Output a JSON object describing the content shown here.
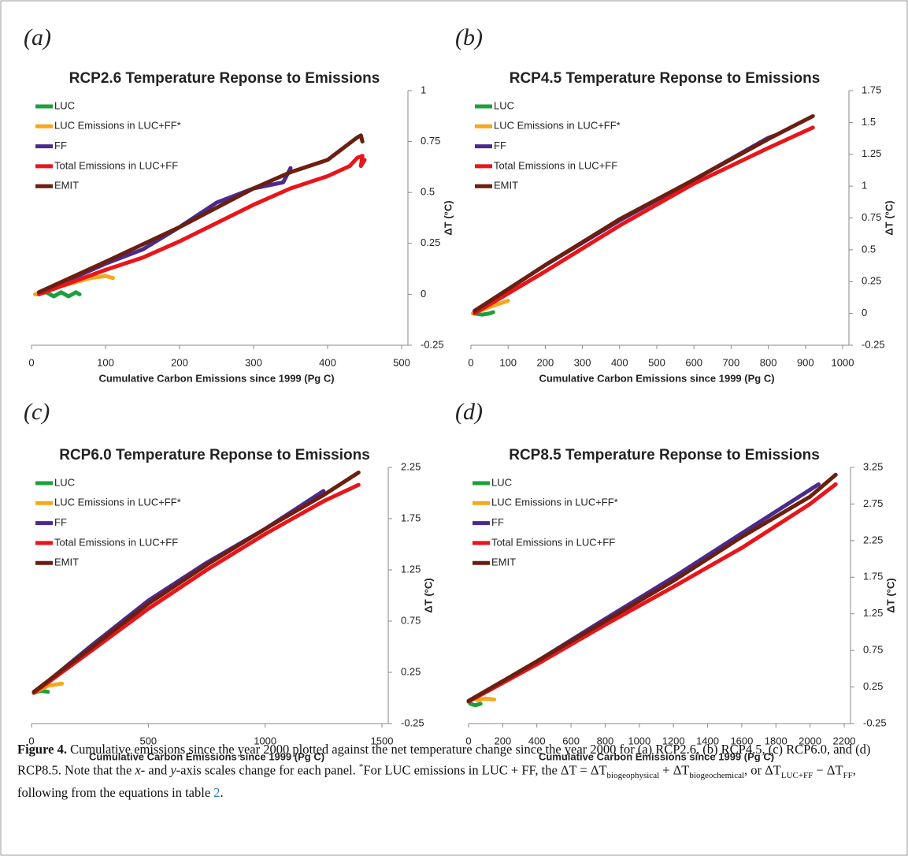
{
  "chart_data": [
    {
      "type": "line",
      "panel_label": "(a)",
      "title": "RCP2.6 Temperature Reponse to Emissions",
      "x_label": "Cumulative Carbon Emissions since 1999 (Pg C)",
      "y_label": "ΔT (°C)",
      "xlim": [
        0,
        500
      ],
      "xticks": [
        0,
        100,
        200,
        300,
        400,
        500
      ],
      "ylim": [
        -0.25,
        1
      ],
      "yticks": [
        1,
        0.75,
        0.5,
        0.25,
        0,
        -0.25
      ],
      "y_axis_side": "right",
      "legend": "upper left",
      "series": [
        {
          "name": "LUC",
          "color": "#1e9e3e",
          "x": [
            5,
            20,
            30,
            40,
            50,
            55,
            60,
            65
          ],
          "values": [
            0,
            0.01,
            -0.01,
            0.01,
            -0.01,
            0,
            0.01,
            0
          ]
        },
        {
          "name": "LUC Emissions in LUC+FF*",
          "color": "#f5a81c",
          "x": [
            5,
            20,
            40,
            60,
            80,
            100,
            110
          ],
          "values": [
            0,
            0.02,
            0.04,
            0.06,
            0.08,
            0.09,
            0.08
          ]
        },
        {
          "name": "FF",
          "color": "#4b2a8f",
          "x": [
            10,
            50,
            100,
            150,
            200,
            250,
            300,
            340,
            350
          ],
          "values": [
            0.01,
            0.07,
            0.15,
            0.22,
            0.33,
            0.45,
            0.52,
            0.55,
            0.62
          ]
        },
        {
          "name": "Total Emissions in LUC+FF",
          "color": "#e8151b",
          "x": [
            10,
            100,
            150,
            200,
            250,
            300,
            350,
            400,
            430,
            440,
            447,
            445,
            450
          ],
          "values": [
            0,
            0.12,
            0.18,
            0.26,
            0.35,
            0.44,
            0.52,
            0.58,
            0.63,
            0.67,
            0.68,
            0.63,
            0.66
          ]
        },
        {
          "name": "EMIT",
          "color": "#6b1f0f",
          "x": [
            10,
            100,
            200,
            300,
            350,
            400,
            440,
            445,
            447
          ],
          "values": [
            0.01,
            0.16,
            0.33,
            0.52,
            0.6,
            0.66,
            0.77,
            0.78,
            0.75
          ]
        }
      ]
    },
    {
      "type": "line",
      "panel_label": "(b)",
      "title": "RCP4.5 Temperature Reponse to Emissions",
      "x_label": "Cumulative Carbon Emissions since 1999 (Pg C)",
      "y_label": "ΔT (°C)",
      "xlim": [
        0,
        1000
      ],
      "xticks": [
        0,
        100,
        200,
        300,
        400,
        500,
        600,
        700,
        800,
        900,
        1000
      ],
      "ylim": [
        -0.25,
        1.75
      ],
      "yticks": [
        1.75,
        1.5,
        1.25,
        1,
        0.75,
        0.5,
        0.25,
        0,
        -0.25
      ],
      "y_axis_side": "right",
      "legend": "upper left",
      "series": [
        {
          "name": "LUC",
          "color": "#1e9e3e",
          "x": [
            10,
            30,
            50,
            60
          ],
          "values": [
            0,
            -0.01,
            0,
            0.01
          ]
        },
        {
          "name": "LUC Emissions in LUC+FF*",
          "color": "#f5a81c",
          "x": [
            5,
            50,
            100
          ],
          "values": [
            0,
            0.05,
            0.1
          ]
        },
        {
          "name": "FF",
          "color": "#4b2a8f",
          "x": [
            10,
            200,
            400,
            600,
            800,
            820
          ],
          "values": [
            0.02,
            0.38,
            0.73,
            1.05,
            1.38,
            1.4
          ]
        },
        {
          "name": "Total Emissions in LUC+FF",
          "color": "#e8151b",
          "x": [
            10,
            200,
            400,
            600,
            800,
            920
          ],
          "values": [
            0,
            0.33,
            0.69,
            1.02,
            1.3,
            1.46
          ]
        },
        {
          "name": "EMIT",
          "color": "#6b1f0f",
          "x": [
            10,
            200,
            400,
            600,
            800,
            920
          ],
          "values": [
            0.02,
            0.38,
            0.74,
            1.05,
            1.37,
            1.55
          ]
        }
      ]
    },
    {
      "type": "line",
      "panel_label": "(c)",
      "title": "RCP6.0 Temperature Reponse to Emissions",
      "x_label": "Cumulative Carbon Emissions since 1999 (Pg C)",
      "y_label": "ΔT (°C)",
      "xlim": [
        0,
        1500
      ],
      "xticks": [
        0,
        500,
        1000,
        1500
      ],
      "ylim": [
        -0.25,
        2.25
      ],
      "yticks": [
        2.25,
        1.75,
        1.25,
        0.75,
        0.25,
        -0.25
      ],
      "y_axis_side": "right",
      "legend": "upper left",
      "series": [
        {
          "name": "LUC",
          "color": "#1e9e3e",
          "x": [
            10,
            40,
            70
          ],
          "values": [
            0.05,
            0.07,
            0.06
          ]
        },
        {
          "name": "LUC Emissions in LUC+FF*",
          "color": "#f5a81c",
          "x": [
            10,
            70,
            130
          ],
          "values": [
            0.05,
            0.12,
            0.14
          ]
        },
        {
          "name": "FF",
          "color": "#4b2a8f",
          "x": [
            10,
            250,
            500,
            750,
            1000,
            1250
          ],
          "values": [
            0.05,
            0.5,
            0.95,
            1.32,
            1.65,
            2.02
          ]
        },
        {
          "name": "Total Emissions in LUC+FF",
          "color": "#e8151b",
          "x": [
            10,
            250,
            500,
            750,
            1000,
            1250,
            1400
          ],
          "values": [
            0.05,
            0.45,
            0.87,
            1.25,
            1.6,
            1.92,
            2.08
          ]
        },
        {
          "name": "EMIT",
          "color": "#6b1f0f",
          "x": [
            10,
            250,
            500,
            750,
            1000,
            1250,
            1400
          ],
          "values": [
            0.06,
            0.48,
            0.92,
            1.3,
            1.65,
            1.98,
            2.2
          ]
        }
      ]
    },
    {
      "type": "line",
      "panel_label": "(d)",
      "title": "RCP8.5 Temperature Reponse to Emissions",
      "x_label": "Cumulative Carbon Emissions since 1999 (Pg C)",
      "y_label": "ΔT (°C)",
      "xlim": [
        0,
        2200
      ],
      "xticks": [
        0,
        200,
        400,
        600,
        800,
        1000,
        1200,
        1400,
        1600,
        1800,
        2000,
        2200
      ],
      "ylim": [
        -0.25,
        3.25
      ],
      "yticks": [
        3.25,
        2.75,
        2.25,
        1.75,
        1.25,
        0.75,
        0.25,
        -0.25
      ],
      "y_axis_side": "right",
      "legend": "upper left",
      "series": [
        {
          "name": "LUC",
          "color": "#1e9e3e",
          "x": [
            10,
            40,
            70
          ],
          "values": [
            0.02,
            0,
            0.02
          ]
        },
        {
          "name": "LUC Emissions in LUC+FF*",
          "color": "#f5a81c",
          "x": [
            50,
            100,
            150
          ],
          "values": [
            0.07,
            0.09,
            0.08
          ]
        },
        {
          "name": "FF",
          "color": "#4b2a8f",
          "x": [
            0,
            400,
            800,
            1200,
            1600,
            2050
          ],
          "values": [
            0.05,
            0.6,
            1.18,
            1.75,
            2.35,
            3.02
          ]
        },
        {
          "name": "Total Emissions in LUC+FF",
          "color": "#e8151b",
          "x": [
            0,
            400,
            800,
            1200,
            1600,
            2000,
            2150
          ],
          "values": [
            0.05,
            0.56,
            1.1,
            1.62,
            2.15,
            2.75,
            3.02
          ]
        },
        {
          "name": "EMIT",
          "color": "#6b1f0f",
          "x": [
            0,
            400,
            800,
            1200,
            1600,
            2000,
            2150
          ],
          "values": [
            0.06,
            0.6,
            1.15,
            1.7,
            2.3,
            2.85,
            3.15
          ]
        }
      ]
    }
  ],
  "caption": [
    {
      "text": "Figure 4.",
      "style": "bold"
    },
    {
      "text": " Cumulative emissions since the year 2000 plotted against the net temperature change since the year 2000 for (a) RCP2.6, (b) RCP4.5, (c) RCP6.0, and (d) RCP8.5. Note that the "
    },
    {
      "text": "x",
      "style": "italic"
    },
    {
      "text": "- and "
    },
    {
      "text": "y",
      "style": "italic"
    },
    {
      "text": "-axis scales change for each panel. "
    },
    {
      "text": "*",
      "style": "sup"
    },
    {
      "text": "For LUC emissions in LUC + FF, the ΔT = ΔT"
    },
    {
      "text": "biogeophysical",
      "style": "sub"
    },
    {
      "text": " + ΔT"
    },
    {
      "text": "biogeochemical",
      "style": "sub"
    },
    {
      "text": ", or ΔT"
    },
    {
      "text": "LUC+FF",
      "style": "sub"
    },
    {
      "text": " − ΔT"
    },
    {
      "text": "FF",
      "style": "sub"
    },
    {
      "text": ", following from the equations in table "
    },
    {
      "text": "2",
      "style": "link"
    },
    {
      "text": "."
    }
  ]
}
